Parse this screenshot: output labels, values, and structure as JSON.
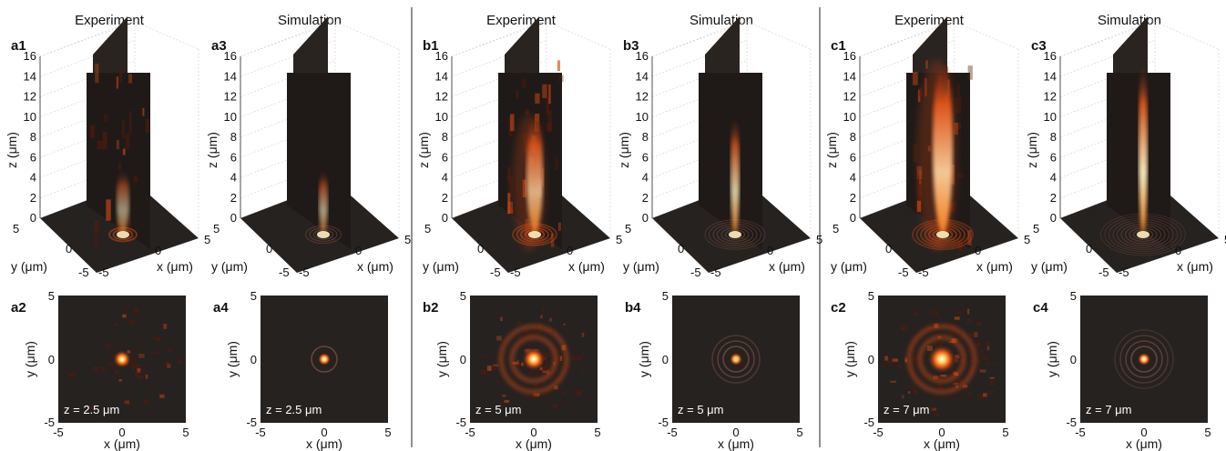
{
  "groups": [
    {
      "experiment_title": "Experiment",
      "simulation_title": "Simulation",
      "panels_3d": [
        {
          "label": "a1",
          "kind": "experiment",
          "brightness": 0.55
        },
        {
          "label": "a3",
          "kind": "simulation",
          "brightness": 0.6
        }
      ],
      "panels_2d": [
        {
          "label": "a2",
          "kind": "experiment",
          "z_text": "z = 2.5 μm",
          "rings": 0
        },
        {
          "label": "a4",
          "kind": "simulation",
          "z_text": "z = 2.5 μm",
          "rings": 1
        }
      ]
    },
    {
      "experiment_title": "Experiment",
      "simulation_title": "Simulation",
      "panels_3d": [
        {
          "label": "b1",
          "kind": "experiment",
          "brightness": 0.85
        },
        {
          "label": "b3",
          "kind": "simulation",
          "brightness": 0.8
        }
      ],
      "panels_2d": [
        {
          "label": "b2",
          "kind": "experiment",
          "z_text": "z = 5 μm",
          "rings": 2
        },
        {
          "label": "b4",
          "kind": "simulation",
          "z_text": "z = 5 μm",
          "rings": 3
        }
      ]
    },
    {
      "experiment_title": "Experiment",
      "simulation_title": "Simulation",
      "panels_3d": [
        {
          "label": "c1",
          "kind": "experiment",
          "brightness": 1.0
        },
        {
          "label": "c3",
          "kind": "simulation",
          "brightness": 0.95
        }
      ],
      "panels_2d": [
        {
          "label": "c2",
          "kind": "experiment",
          "z_text": "z = 7 μm",
          "rings": 2
        },
        {
          "label": "c4",
          "kind": "simulation",
          "z_text": "z = 7 μm",
          "rings": 4
        }
      ]
    }
  ],
  "axes_3d": {
    "z_ticks": [
      "0",
      "2",
      "4",
      "6",
      "8",
      "10",
      "12",
      "14",
      "16"
    ],
    "z_label": "z (μm)",
    "y_ticks": [
      "5",
      "0",
      "-5"
    ],
    "y_label": "y (μm)",
    "x_ticks": [
      "-5",
      "0",
      "5"
    ],
    "x_label": "x (μm)"
  },
  "axes_2d": {
    "y_ticks": [
      "5",
      "0",
      "-5"
    ],
    "y_label": "y (μm)",
    "x_ticks": [
      "-5",
      "0",
      "5"
    ],
    "x_label": "x (μm)"
  },
  "colors": {
    "background": "#262220",
    "hot_dark": "#5a1a08",
    "hot_mid": "#d24a14",
    "hot_bright": "#ffb040",
    "hot_white": "#fffbe8"
  }
}
